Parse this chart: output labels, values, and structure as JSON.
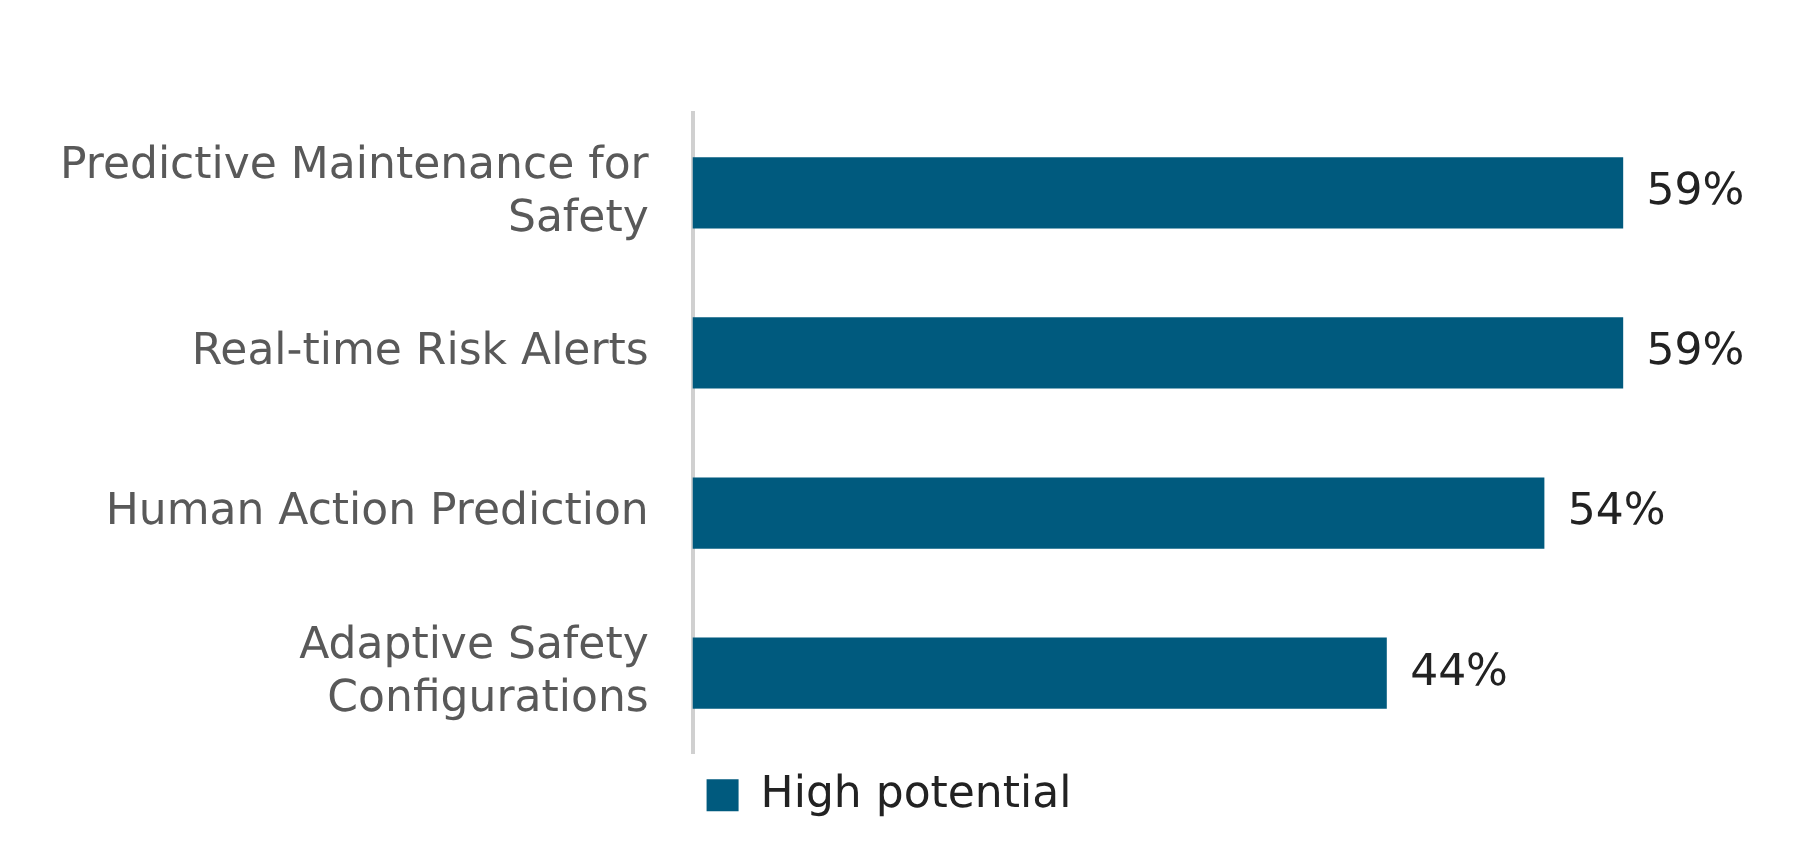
{
  "chart_data": {
    "type": "bar",
    "orientation": "horizontal",
    "categories": [
      "Predictive Maintenance for Safety",
      "Real-time Risk Alerts",
      "Human Action Prediction",
      "Adaptive Safety Configurations"
    ],
    "series": [
      {
        "name": "High potential",
        "color": "#005a7e",
        "values": [
          59,
          59,
          54,
          44
        ],
        "value_labels": [
          "59%",
          "59%",
          "54%",
          "44%"
        ]
      }
    ],
    "legend": "bottom"
  }
}
